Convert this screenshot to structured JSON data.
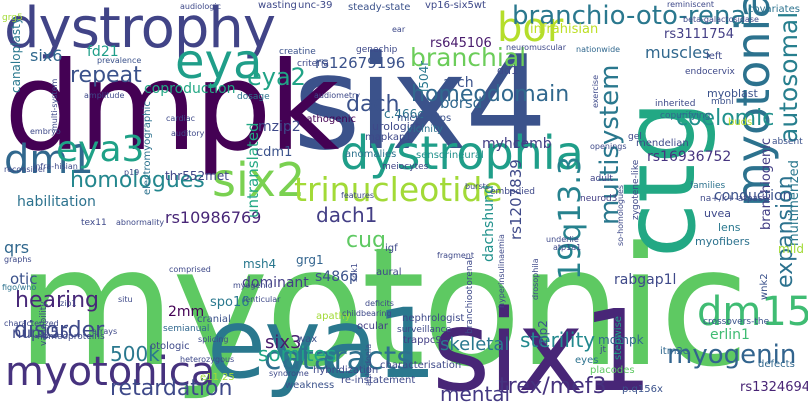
{
  "wordcloud": {
    "words": [
      {
        "text": "myotonic",
        "color": "#5ec962"
      },
      {
        "text": "six4",
        "color": "#3b528b"
      },
      {
        "text": "dmpk",
        "color": "#440154"
      },
      {
        "text": "six1",
        "color": "#482677"
      },
      {
        "text": "eya1",
        "color": "#2a788e"
      },
      {
        "text": "ctg",
        "color": "#22a884"
      },
      {
        "text": "dystrophy",
        "color": "#414487"
      },
      {
        "text": "myotonia",
        "color": "#2c728e"
      },
      {
        "text": "dystrophia",
        "color": "#1f9e89"
      },
      {
        "text": "six2",
        "color": "#7ad151"
      },
      {
        "text": "eya",
        "color": "#1f9e89"
      },
      {
        "text": "bor",
        "color": "#b5de2b"
      },
      {
        "text": "branchio-oto-renal",
        "color": "#2a788e"
      },
      {
        "text": "trinucleotide",
        "color": "#a2da37"
      },
      {
        "text": "dm15",
        "color": "#3fbc73"
      },
      {
        "text": "myotonica",
        "color": "#46327e"
      },
      {
        "text": "cataracts",
        "color": "#2d708e"
      },
      {
        "text": "myogenin",
        "color": "#32648e"
      },
      {
        "text": "dm1",
        "color": "#31688e"
      },
      {
        "text": "eya3",
        "color": "#1fa187"
      },
      {
        "text": "19q13.3",
        "color": "#26828e"
      },
      {
        "text": "multisystem",
        "color": "#2a788e"
      },
      {
        "text": "autosomal",
        "color": "#277f8e"
      },
      {
        "text": "homologues",
        "color": "#24878e"
      },
      {
        "text": "homeodomain",
        "color": "#31688e"
      },
      {
        "text": "branchial",
        "color": "#6ccd5a"
      },
      {
        "text": "eya2",
        "color": "#20a386"
      },
      {
        "text": "coelomic",
        "color": "#21918c"
      },
      {
        "text": "expansion",
        "color": "#2c728e"
      },
      {
        "text": "retardation",
        "color": "#3e4989"
      },
      {
        "text": "trex/mef3",
        "color": "#46327e"
      },
      {
        "text": "disorder",
        "color": "#3e4989"
      },
      {
        "text": "hearing",
        "color": "#482878"
      },
      {
        "text": "mental",
        "color": "#443983"
      },
      {
        "text": "somites",
        "color": "#20a386"
      },
      {
        "text": "500k",
        "color": "#2a788e"
      },
      {
        "text": "sterility",
        "color": "#23898e"
      },
      {
        "text": "dach",
        "color": "#3b528b"
      },
      {
        "text": "dach1",
        "color": "#433e85"
      },
      {
        "text": "cug",
        "color": "#5ec962"
      },
      {
        "text": "repeat",
        "color": "#3b528b"
      },
      {
        "text": "skeletal",
        "color": "#2a788e"
      },
      {
        "text": "six3",
        "color": "#481a6c"
      },
      {
        "text": "six6",
        "color": "#31688e"
      },
      {
        "text": "rs10986769",
        "color": "#482677"
      },
      {
        "text": "rs12679196",
        "color": "#3b528b"
      },
      {
        "text": "rs645106",
        "color": "#481a6c"
      },
      {
        "text": "rs16936752",
        "color": "#463480"
      },
      {
        "text": "rs1207839",
        "color": "#3e4989"
      },
      {
        "text": "rs3111754",
        "color": "#433e85"
      },
      {
        "text": "rs1324694",
        "color": "#482475"
      },
      {
        "text": "muscles",
        "color": "#31688e"
      },
      {
        "text": "infrahisian",
        "color": "#bddf26"
      },
      {
        "text": "fd21",
        "color": "#1f9e89"
      },
      {
        "text": "coproduction",
        "color": "#22a884"
      },
      {
        "text": "untranslated",
        "color": "#22a884"
      },
      {
        "text": "borsd",
        "color": "#31688e"
      },
      {
        "text": "arch",
        "color": "#3b528b"
      },
      {
        "text": "myhcemb",
        "color": "#433e85"
      },
      {
        "text": "mzip2",
        "color": "#3e4989"
      },
      {
        "text": "thr552met",
        "color": "#404688"
      },
      {
        "text": "cdm1",
        "color": "#3b528b"
      },
      {
        "text": "habilitation",
        "color": "#2c728e"
      },
      {
        "text": "qrs",
        "color": "#31688e"
      },
      {
        "text": "otic",
        "color": "#3b528b"
      },
      {
        "text": "nup155",
        "color": "#3e4989"
      },
      {
        "text": "2mm",
        "color": "#440154"
      },
      {
        "text": "spo16",
        "color": "#2a788e"
      },
      {
        "text": "s486p",
        "color": "#3b528b"
      },
      {
        "text": "dachshund",
        "color": "#21918c"
      },
      {
        "text": "rabgap1l",
        "color": "#3e4989"
      },
      {
        "text": "branchiogenic",
        "color": "#433e85"
      },
      {
        "text": "conduction",
        "color": "#3b528b"
      },
      {
        "text": "multimerized",
        "color": "#2a788e"
      },
      {
        "text": "erlin1",
        "color": "#3fbc73"
      },
      {
        "text": "dominant",
        "color": "#433e85"
      },
      {
        "text": "grg1",
        "color": "#32648e"
      },
      {
        "text": "msh4",
        "color": "#2a788e"
      },
      {
        "text": "mdmpk",
        "color": "#31688e"
      },
      {
        "text": "zip2",
        "color": "#3b528b"
      },
      {
        "text": "canaloplasty",
        "color": "#2a788e"
      },
      {
        "text": "mild",
        "color": "#a2da37"
      },
      {
        "text": "lens",
        "color": "#2a788e"
      },
      {
        "text": "uvea",
        "color": "#3e4989"
      },
      {
        "text": "myofibers",
        "color": "#2c728e"
      },
      {
        "text": "c.466c",
        "color": "#2c728e"
      },
      {
        "text": "l504r",
        "color": "#2a788e"
      },
      {
        "text": "dd1",
        "color": "#3e4989"
      },
      {
        "text": "urologist",
        "color": "#3e4989"
      },
      {
        "text": "microchips",
        "color": "#3b528b"
      },
      {
        "text": "vicinity",
        "color": "#2c728e"
      },
      {
        "text": "mapkap1",
        "color": "#3e4989"
      },
      {
        "text": "sensorineural",
        "color": "#21918c"
      },
      {
        "text": "anomalies",
        "color": "#2c728e"
      },
      {
        "text": "meiocytes",
        "color": "#414487"
      },
      {
        "text": "adult",
        "color": "#414487"
      },
      {
        "text": "semianual",
        "color": "#31688e"
      },
      {
        "text": "cranial",
        "color": "#3b528b"
      },
      {
        "text": "ocular",
        "color": "#433e85"
      },
      {
        "text": "trappc9",
        "color": "#433e85"
      },
      {
        "text": "eyes",
        "color": "#2c728e"
      },
      {
        "text": "stepwise",
        "color": "#20a386"
      },
      {
        "text": "placodes",
        "color": "#5ec962"
      },
      {
        "text": "itm2c",
        "color": "#31688e"
      },
      {
        "text": "wnk2",
        "color": "#3b528b"
      },
      {
        "text": "e11.25",
        "color": "#a2da37"
      },
      {
        "text": "hybridization",
        "color": "#3e4989"
      },
      {
        "text": "re-instatement",
        "color": "#3e4989"
      },
      {
        "text": "weakness",
        "color": "#3b528b"
      },
      {
        "text": "characterisation",
        "color": "#3e4989"
      },
      {
        "text": "p.q156x",
        "color": "#3b528b"
      },
      {
        "text": "defects",
        "color": "#31688e"
      },
      {
        "text": "crossovers-the",
        "color": "#3b528b"
      },
      {
        "text": "families",
        "color": "#2c728e"
      },
      {
        "text": "zygotene-like",
        "color": "#3e4989"
      },
      {
        "text": "na+/k+-atpase",
        "color": "#3e4989"
      },
      {
        "text": "neurod3",
        "color": "#433e85"
      },
      {
        "text": "embodied",
        "color": "#3e4989"
      },
      {
        "text": "myoblast",
        "color": "#3b528b"
      },
      {
        "text": "inherited",
        "color": "#3e4989"
      },
      {
        "text": "copurifying",
        "color": "#31688e"
      },
      {
        "text": "mbnl",
        "color": "#3b528b"
      },
      {
        "text": "mendelian",
        "color": "#3e4989"
      },
      {
        "text": "buds",
        "color": "#bddf26"
      },
      {
        "text": "absent",
        "color": "#3b528b"
      },
      {
        "text": "endocervix",
        "color": "#3e4989"
      },
      {
        "text": "beta-galactosidase",
        "color": "#3e4989"
      },
      {
        "text": "covariates",
        "color": "#2c728e"
      },
      {
        "text": "left",
        "color": "#3e4989"
      },
      {
        "text": "nationwide",
        "color": "#31688e"
      },
      {
        "text": "reminiscent",
        "color": "#3e4989"
      },
      {
        "text": "vp16-six5wt",
        "color": "#3e4989"
      },
      {
        "text": "steady-state",
        "color": "#3b528b"
      },
      {
        "text": "wasting",
        "color": "#3e4989"
      },
      {
        "text": "unc-39",
        "color": "#3e4989"
      },
      {
        "text": "audiologic",
        "color": "#3e4989"
      },
      {
        "text": "grg5",
        "color": "#a2da37"
      },
      {
        "text": "prevalence",
        "color": "#3b528b"
      },
      {
        "text": "amplitude",
        "color": "#3e4989"
      },
      {
        "text": "creatine",
        "color": "#3b528b"
      },
      {
        "text": "criteria",
        "color": "#3e4989"
      },
      {
        "text": "dosage",
        "color": "#2c728e"
      },
      {
        "text": "audiometry",
        "color": "#3e4989"
      },
      {
        "text": "pathogenic",
        "color": "#440154"
      },
      {
        "text": "genechip",
        "color": "#3e4989"
      },
      {
        "text": "cardiac",
        "color": "#3e4989"
      },
      {
        "text": "auditory",
        "color": "#3e4989"
      },
      {
        "text": "embryo",
        "color": "#3e4989"
      },
      {
        "text": "multi-system",
        "color": "#3e4989"
      },
      {
        "text": "electromyographic",
        "color": "#2c728e"
      },
      {
        "text": "tex11",
        "color": "#3e4989"
      },
      {
        "text": "abnormality",
        "color": "#3e4989"
      },
      {
        "text": "graphs",
        "color": "#3e4989"
      },
      {
        "text": "homeoproteins",
        "color": "#3e4989"
      },
      {
        "text": "otologic",
        "color": "#3e4989"
      },
      {
        "text": "heterozygous",
        "color": "#3e4989"
      },
      {
        "text": "syndrome",
        "color": "#3e4989"
      },
      {
        "text": "wax",
        "color": "#3b528b"
      },
      {
        "text": "apathy",
        "color": "#a2da37"
      },
      {
        "text": "igf",
        "color": "#3e4989"
      },
      {
        "text": "fragment",
        "color": "#3e4989"
      },
      {
        "text": "comprised",
        "color": "#3e4989"
      },
      {
        "text": "myogenic",
        "color": "#3e4989"
      },
      {
        "text": "nephrologist",
        "color": "#3e4989"
      },
      {
        "text": "surveillance",
        "color": "#3e4989"
      },
      {
        "text": "childbearing",
        "color": "#3e4989"
      },
      {
        "text": "splicing",
        "color": "#3e4989"
      },
      {
        "text": "characterized",
        "color": "#3e4989"
      },
      {
        "text": "arrays",
        "color": "#3e4989"
      },
      {
        "text": "situ",
        "color": "#3e4989"
      },
      {
        "text": "lenticular",
        "color": "#3e4989"
      },
      {
        "text": "aural",
        "color": "#3e4989"
      },
      {
        "text": "sdk1",
        "color": "#3e4989"
      },
      {
        "text": "branchiootorenal",
        "color": "#3e4989"
      },
      {
        "text": "hyperinsulinaemia",
        "color": "#3e4989"
      },
      {
        "text": "drosophila",
        "color": "#3e4989"
      },
      {
        "text": "underlie",
        "color": "#3e4989"
      },
      {
        "text": "bursts",
        "color": "#3e4989"
      },
      {
        "text": "features",
        "color": "#3e4989"
      },
      {
        "text": "openings",
        "color": "#3e4989"
      },
      {
        "text": "gel",
        "color": "#3e4989"
      },
      {
        "text": "jt",
        "color": "#3e4989"
      },
      {
        "text": "ear",
        "color": "#3e4989"
      },
      {
        "text": "reconsider",
        "color": "#3e4989"
      },
      {
        "text": "figo/who",
        "color": "#2c728e"
      },
      {
        "text": "infra-hisian",
        "color": "#3e4989"
      },
      {
        "text": "variability",
        "color": "#3e4989"
      },
      {
        "text": "p19",
        "color": "#3e4989"
      },
      {
        "text": "zip1",
        "color": "#3e4989"
      },
      {
        "text": "exercise",
        "color": "#3e4989"
      },
      {
        "text": "so-homologues",
        "color": "#3e4989"
      },
      {
        "text": "atp1a1",
        "color": "#3e4989"
      },
      {
        "text": "deficits",
        "color": "#3e4989"
      },
      {
        "text": "anhedonia",
        "color": "#3e4989"
      },
      {
        "text": "neuromuscular",
        "color": "#3e4989"
      }
    ]
  }
}
